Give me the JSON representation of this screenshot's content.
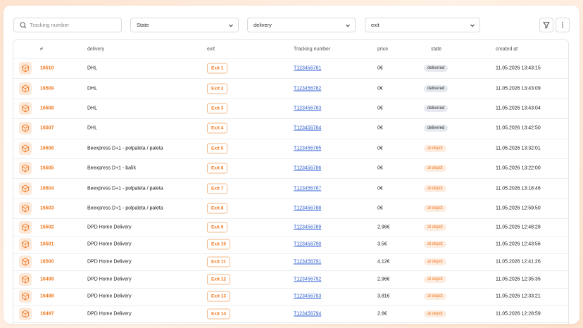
{
  "filters": {
    "search_placeholder": "Tracking number",
    "state": "State",
    "delivery": "delivery",
    "exit": "exit"
  },
  "table": {
    "columns": [
      "#",
      "delivery",
      "exit",
      "Tracking number",
      "price",
      "state",
      "created at"
    ],
    "rows": [
      [
        "16510",
        "DHL",
        "Exit 1",
        "T123456781",
        "0€",
        "delivered",
        "11.05.2026 13:43:15"
      ],
      [
        "16509",
        "DHL",
        "Exit 2",
        "T123456782",
        "0€",
        "delivered",
        "11.05.2026 13:43:09"
      ],
      [
        "16508",
        "DHL",
        "Exit 3",
        "T123456783",
        "0€",
        "delivered",
        "11.05.2026 13:43:04"
      ],
      [
        "16507",
        "DHL",
        "Exit 4",
        "T123456784",
        "0€",
        "delivered",
        "11.05.2026 13:42:50"
      ],
      [
        "16506",
        "Beexpress D+1 - polpaleta / paleta",
        "Exit 5",
        "T123456785",
        "0€",
        "at depot",
        "11.05.2026 13:32:01"
      ],
      [
        "16505",
        "Beexpress D+1 - balík",
        "Exit 6",
        "T123456786",
        "0€",
        "at depot",
        "11.05.2026 13:22:00"
      ],
      [
        "16504",
        "Beexpress D+1 - polpaleta / paleta",
        "Exit 7",
        "T123456787",
        "0€",
        "at depot",
        "11.05.2026 13:18:46"
      ],
      [
        "16503",
        "Beexpress D+1 - polpaleta / paleta",
        "Exit 8",
        "T123456788",
        "0€",
        "at depot",
        "11.05.2026 12:59:50"
      ],
      [
        "16502",
        "DPD Home Delivery",
        "Exit 9",
        "T123456789",
        "2.96€",
        "at depot",
        "11.05.2026 12:48:28"
      ],
      [
        "16501",
        "DPD Home Delivery",
        "Exit 10",
        "T123456790",
        "3.5€",
        "at depot",
        "11.05.2026 12:43:56"
      ],
      [
        "16500",
        "DPD Home Delivery",
        "Exit 11",
        "T123456791",
        "4.12€",
        "at depot",
        "11.05.2026 12:41:26"
      ],
      [
        "16499",
        "DPD Home Delivery",
        "Exit 12",
        "T123456792",
        "2.96€",
        "at depot",
        "11.05.2026 12:35:35"
      ],
      [
        "16498",
        "DPD Home Delivery",
        "Exit 13",
        "T123456793",
        "3.81€",
        "at depot",
        "11.05.2026 12:33:21"
      ],
      [
        "16497",
        "DPD Home Delivery",
        "Exit 14",
        "T123456794",
        "2.6€",
        "at depot",
        "11.05.2026 12:28:59"
      ]
    ]
  }
}
